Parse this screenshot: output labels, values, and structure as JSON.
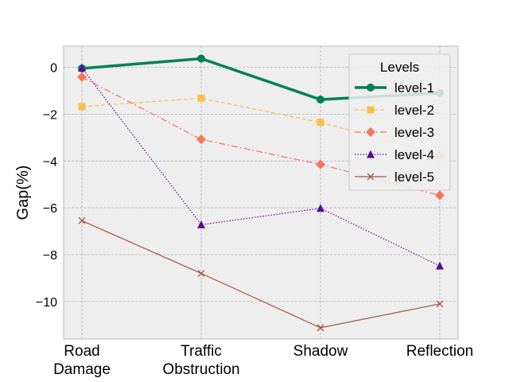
{
  "chart_data": {
    "type": "line",
    "categories": [
      "Road\nDamage",
      "Traffic\nObstruction",
      "Shadow",
      "Reflection"
    ],
    "ylabel": "Gap(%)",
    "xlabel": "",
    "ylim": [
      -11.6,
      0.9
    ],
    "yticks": [
      0,
      -2,
      -4,
      -6,
      -8,
      -10
    ],
    "grid": true,
    "legend": {
      "title": "Levels",
      "placement": "top-right"
    },
    "series": [
      {
        "name": "level-1",
        "values": [
          -0.05,
          0.37,
          -1.38,
          -1.1
        ],
        "color": "#008055",
        "marker": "circle",
        "dash": "",
        "width": 3.5
      },
      {
        "name": "level-2",
        "values": [
          -1.68,
          -1.32,
          -2.35,
          -3.75
        ],
        "color": "#fcc04c",
        "marker": "square",
        "dash": "5,3",
        "width": 1.2
      },
      {
        "name": "level-3",
        "values": [
          -0.42,
          -3.08,
          -4.15,
          -5.47
        ],
        "color": "#f9735a",
        "marker": "diamond",
        "dash": "8,3,2,3",
        "width": 1.2
      },
      {
        "name": "level-4",
        "values": [
          -0.03,
          -6.72,
          -6.02,
          -8.48
        ],
        "color": "#5b0b92",
        "marker": "triangle",
        "dash": "1.5,2",
        "width": 1.2
      },
      {
        "name": "level-5",
        "values": [
          -6.55,
          -8.8,
          -11.12,
          -10.1
        ],
        "color": "#a55342",
        "marker": "x",
        "dash": "",
        "width": 1.2
      }
    ]
  }
}
